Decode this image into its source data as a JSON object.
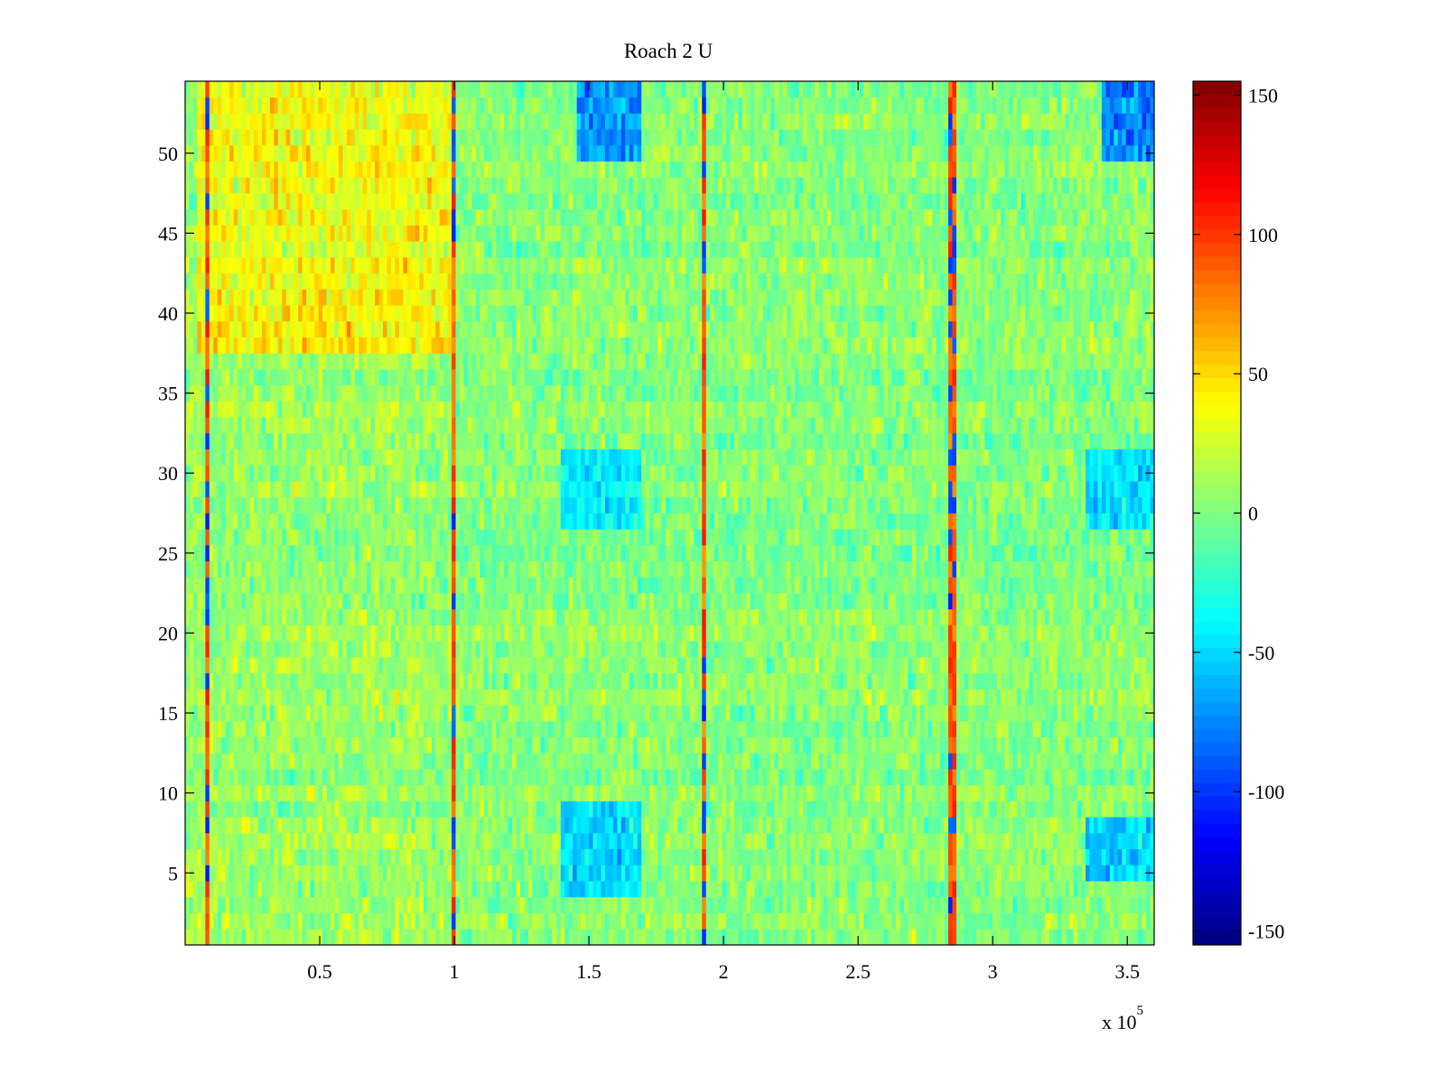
{
  "chart_data": {
    "type": "heatmap",
    "title": "Roach 2 U",
    "xlabel": "",
    "ylabel": "",
    "x_multiplier_label": "x 10",
    "x_multiplier_exponent": "5",
    "x_range": [
      0,
      3.6
    ],
    "y_range": [
      0.5,
      54.5
    ],
    "rows": 54,
    "x_ticks": [
      {
        "value": 0.5,
        "label": "0.5"
      },
      {
        "value": 1,
        "label": "1"
      },
      {
        "value": 1.5,
        "label": "1.5"
      },
      {
        "value": 2,
        "label": "2"
      },
      {
        "value": 2.5,
        "label": "2.5"
      },
      {
        "value": 3,
        "label": "3"
      },
      {
        "value": 3.5,
        "label": "3.5"
      }
    ],
    "y_ticks": [
      {
        "value": 5,
        "label": "5"
      },
      {
        "value": 10,
        "label": "10"
      },
      {
        "value": 15,
        "label": "15"
      },
      {
        "value": 20,
        "label": "20"
      },
      {
        "value": 25,
        "label": "25"
      },
      {
        "value": 30,
        "label": "30"
      },
      {
        "value": 35,
        "label": "35"
      },
      {
        "value": 40,
        "label": "40"
      },
      {
        "value": 45,
        "label": "45"
      },
      {
        "value": 50,
        "label": "50"
      }
    ],
    "colorbar": {
      "colormap": "jet",
      "range": [
        -155,
        155
      ],
      "ticks": [
        {
          "value": 150,
          "label": "150"
        },
        {
          "value": 100,
          "label": "100"
        },
        {
          "value": 50,
          "label": "50"
        },
        {
          "value": 0,
          "label": "0"
        },
        {
          "value": -50,
          "label": "-50"
        },
        {
          "value": -100,
          "label": "-100"
        },
        {
          "value": -150,
          "label": "-150"
        }
      ]
    },
    "features": {
      "vertical_spike_columns": [
        0.08,
        1.0,
        1.93,
        2.85
      ],
      "warm_region": {
        "x": [
          0.05,
          1.0
        ],
        "y": [
          38,
          54
        ],
        "value": 45
      },
      "cold_patches": [
        {
          "x": [
            1.45,
            1.7
          ],
          "y": [
            50,
            54
          ],
          "value": -90
        },
        {
          "x": [
            3.4,
            3.6
          ],
          "y": [
            50,
            54
          ],
          "value": -95
        },
        {
          "x": [
            1.4,
            1.7
          ],
          "y": [
            4,
            9
          ],
          "value": -65
        },
        {
          "x": [
            3.35,
            3.6
          ],
          "y": [
            5,
            8
          ],
          "value": -70
        },
        {
          "x": [
            1.4,
            1.7
          ],
          "y": [
            27,
            31
          ],
          "value": -55
        },
        {
          "x": [
            3.35,
            3.6
          ],
          "y": [
            27,
            31
          ],
          "value": -60
        }
      ],
      "grid": false
    }
  }
}
